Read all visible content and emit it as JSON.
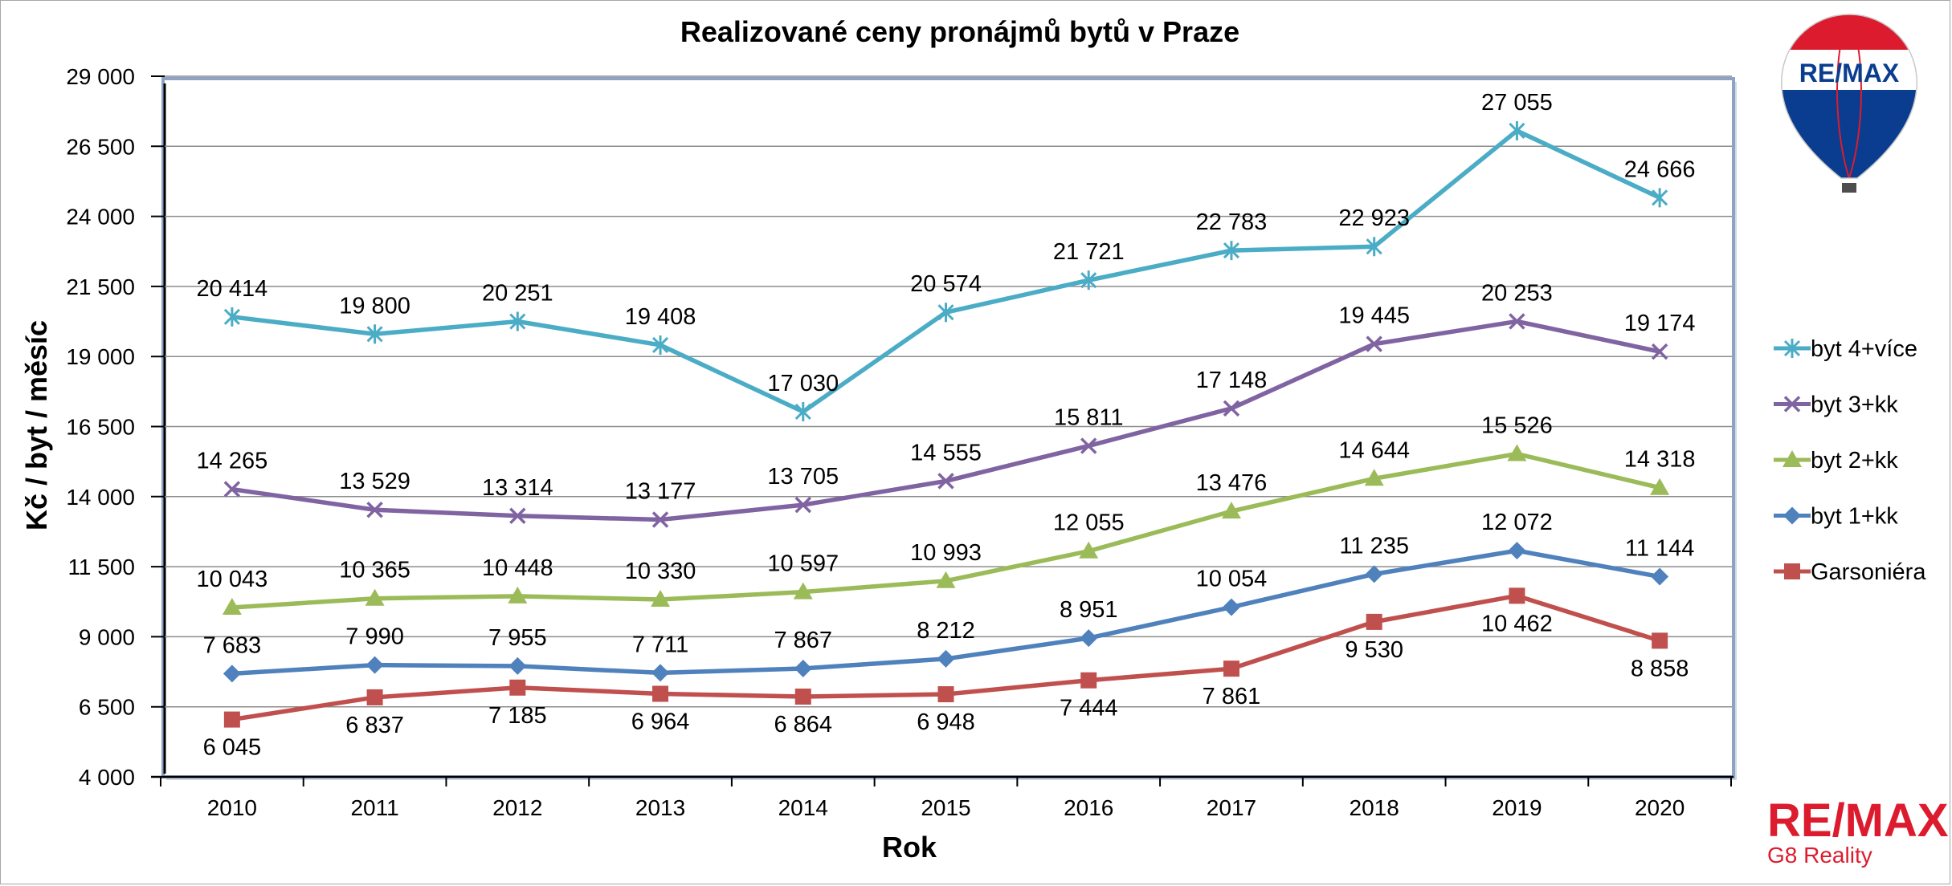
{
  "chart_data": {
    "type": "line",
    "title": "Realizované ceny pronájmů bytů v Praze",
    "xlabel": "Rok",
    "ylabel": "Kč / byt / měsíc",
    "categories": [
      "2010",
      "2011",
      "2012",
      "2013",
      "2014",
      "2015",
      "2016",
      "2017",
      "2018",
      "2019",
      "2020"
    ],
    "ylim": [
      4000,
      29000
    ],
    "yticks": [
      4000,
      6500,
      9000,
      11500,
      14000,
      16500,
      19000,
      21500,
      24000,
      26500,
      29000
    ],
    "ytick_labels": [
      "4 000",
      "6 500",
      "9 000",
      "11 500",
      "14 000",
      "16 500",
      "19 000",
      "21 500",
      "24 000",
      "26 500",
      "29 000"
    ],
    "grid": true,
    "legend_position": "right",
    "series": [
      {
        "name": "byt 4+více",
        "color": "#4bacc6",
        "marker": "star",
        "values": [
          20414,
          19800,
          20251,
          19408,
          17030,
          20574,
          21721,
          22783,
          22923,
          27055,
          24666
        ],
        "labels": [
          "20 414",
          "19 800",
          "20 251",
          "19 408",
          "17 030",
          "20 574",
          "21 721",
          "22 783",
          "22 923",
          "27 055",
          "24 666"
        ]
      },
      {
        "name": "byt 3+kk",
        "color": "#8064a2",
        "marker": "x",
        "values": [
          14265,
          13529,
          13314,
          13177,
          13705,
          14555,
          15811,
          17148,
          19445,
          20253,
          19174
        ],
        "labels": [
          "14 265",
          "13 529",
          "13 314",
          "13 177",
          "13 705",
          "14 555",
          "15 811",
          "17 148",
          "19 445",
          "20 253",
          "19 174"
        ]
      },
      {
        "name": "byt 2+kk",
        "color": "#9bbb59",
        "marker": "triangle",
        "values": [
          10043,
          10365,
          10448,
          10330,
          10597,
          10993,
          12055,
          13476,
          14644,
          15526,
          14318
        ],
        "labels": [
          "10 043",
          "10 365",
          "10 448",
          "10 330",
          "10 597",
          "10 993",
          "12 055",
          "13 476",
          "14 644",
          "15 526",
          "14 318"
        ]
      },
      {
        "name": "byt 1+kk",
        "color": "#4f81bd",
        "marker": "diamond",
        "values": [
          7683,
          7990,
          7955,
          7711,
          7867,
          8212,
          8951,
          10054,
          11235,
          12072,
          11144
        ],
        "labels": [
          "7 683",
          "7 990",
          "7 955",
          "7 711",
          "7 867",
          "8 212",
          "8 951",
          "10 054",
          "11 235",
          "12 072",
          "11 144"
        ]
      },
      {
        "name": "Garsoniéra",
        "color": "#c0504d",
        "marker": "square",
        "values": [
          6045,
          6837,
          7185,
          6964,
          6864,
          6948,
          7444,
          7861,
          9530,
          10462,
          8858
        ],
        "labels": [
          "6 045",
          "6 837",
          "7 185",
          "6 964",
          "6 864",
          "6 948",
          "7 444",
          "7 861",
          "9 530",
          "10 462",
          "8 858"
        ]
      }
    ]
  },
  "branding": {
    "balloon_text": "RE/MAX",
    "logo_text": "RE/MAX",
    "logo_subtext": "G8 Reality"
  }
}
